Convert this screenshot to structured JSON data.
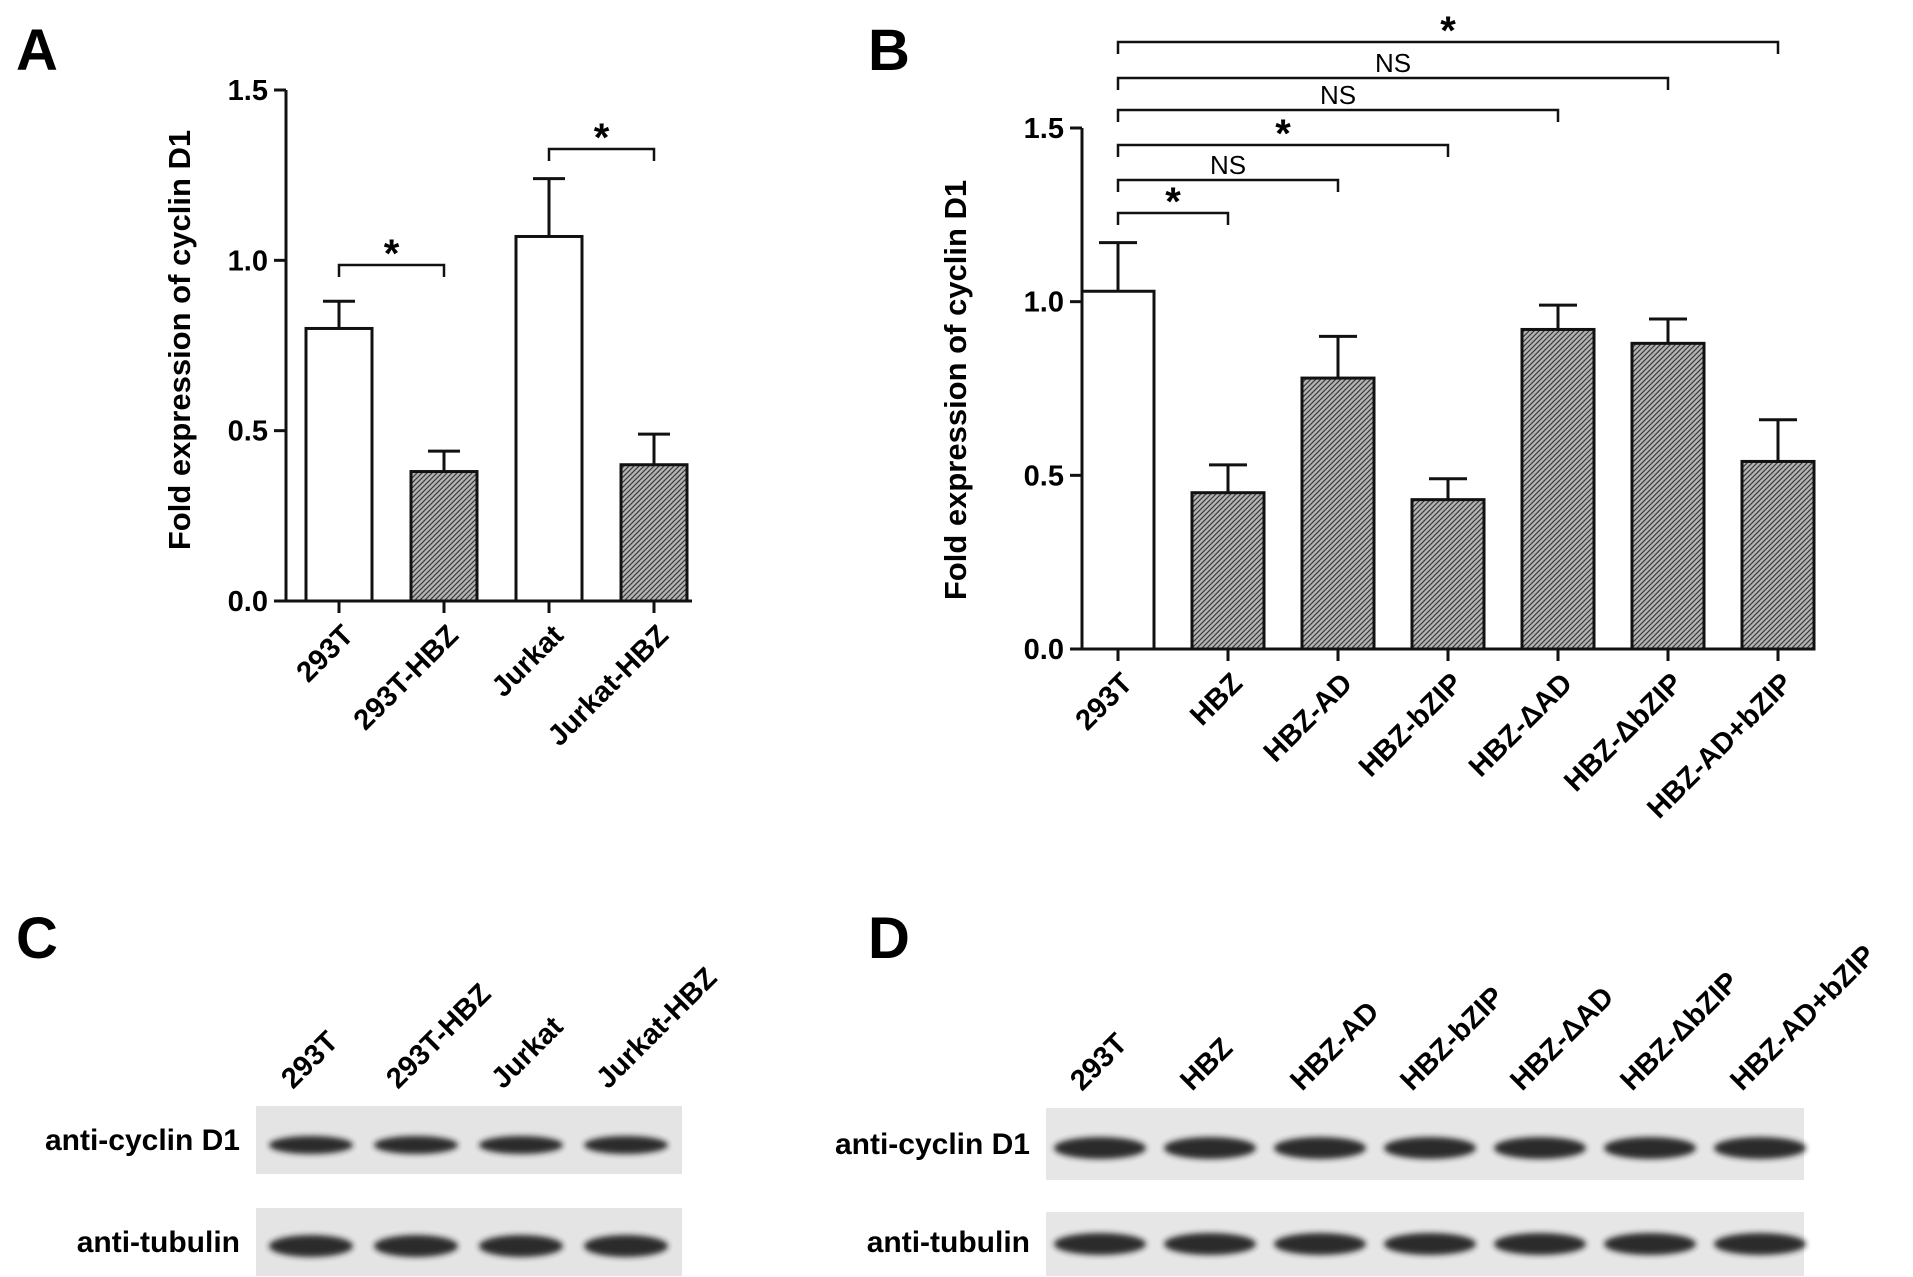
{
  "panels": {
    "A": "A",
    "B": "B",
    "C": "C",
    "D": "D"
  },
  "chart_data": [
    {
      "type": "bar",
      "panel": "A",
      "ylabel": "Fold expression of cyclin D1",
      "ylim": [
        0,
        1.5
      ],
      "yticks": [
        "0.0",
        "0.5",
        "1.0",
        "1.5"
      ],
      "categories": [
        "293T",
        "293T-HBZ",
        "Jurkat",
        "Jurkat-HBZ"
      ],
      "values": [
        0.8,
        0.38,
        1.07,
        0.4
      ],
      "errors": [
        0.08,
        0.06,
        0.17,
        0.09
      ],
      "fills": [
        "white",
        "hatched",
        "white",
        "hatched"
      ],
      "significance": [
        {
          "from": 0,
          "to": 1,
          "label": "*"
        },
        {
          "from": 2,
          "to": 3,
          "label": "*"
        }
      ]
    },
    {
      "type": "bar",
      "panel": "B",
      "ylabel": "Fold expression of cyclin D1",
      "ylim": [
        0,
        1.5
      ],
      "yticks": [
        "0.0",
        "0.5",
        "1.0",
        "1.5"
      ],
      "categories": [
        "293T",
        "HBZ",
        "HBZ-AD",
        "HBZ-bZIP",
        "HBZ-ΔAD",
        "HBZ-ΔbZIP",
        "HBZ-AD+bZIP"
      ],
      "values": [
        1.03,
        0.45,
        0.78,
        0.43,
        0.92,
        0.88,
        0.54
      ],
      "errors": [
        0.14,
        0.08,
        0.12,
        0.06,
        0.07,
        0.07,
        0.12
      ],
      "fills": [
        "white",
        "hatched",
        "hatched",
        "hatched",
        "hatched",
        "hatched",
        "hatched"
      ],
      "significance": [
        {
          "from": 0,
          "to": 1,
          "label": "*"
        },
        {
          "from": 0,
          "to": 2,
          "label": "NS"
        },
        {
          "from": 0,
          "to": 3,
          "label": "*"
        },
        {
          "from": 0,
          "to": 4,
          "label": "NS"
        },
        {
          "from": 0,
          "to": 5,
          "label": "NS"
        },
        {
          "from": 0,
          "to": 6,
          "label": "*"
        }
      ]
    }
  ],
  "blots": [
    {
      "panel": "C",
      "lanes": [
        "293T",
        "293T-HBZ",
        "Jurkat",
        "Jurkat-HBZ"
      ],
      "rows": [
        "anti-cyclin D1",
        "anti-tubulin"
      ]
    },
    {
      "panel": "D",
      "lanes": [
        "293T",
        "HBZ",
        "HBZ-AD",
        "HBZ-bZIP",
        "HBZ-ΔAD",
        "HBZ-ΔbZIP",
        "HBZ-AD+bZIP"
      ],
      "rows": [
        "anti-cyclin D1",
        "anti-tubulin"
      ]
    }
  ],
  "colors": {
    "ink": "#111111",
    "bar_white": "#ffffff",
    "hatch": "#9a9a9a",
    "blot_bg": "#e6e6e6",
    "band": "#1e1e1e"
  }
}
